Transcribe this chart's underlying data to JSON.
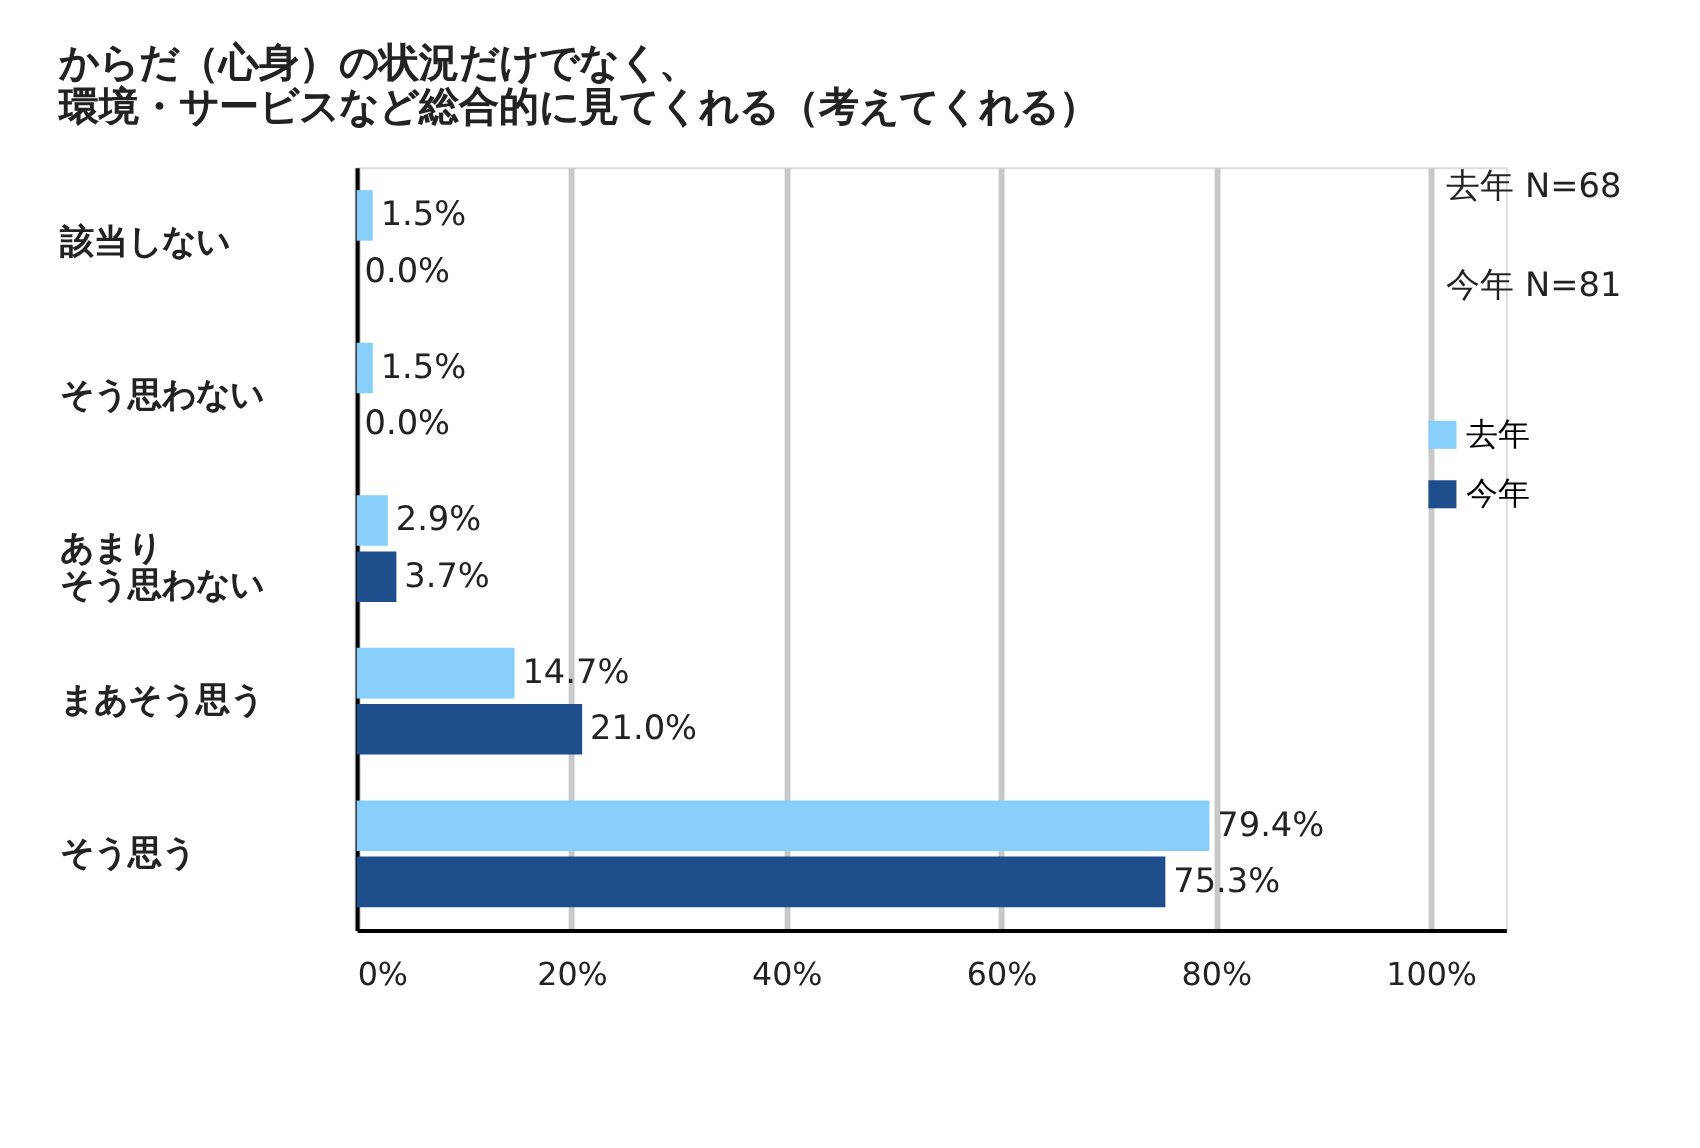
{
  "chart_data": {
    "type": "bar",
    "orientation": "horizontal",
    "title": "からだ（心身）の状況だけでなく、環境・サービスなど総合的に見てくれる（考えてくれる）",
    "categories": [
      "該当しない",
      "そう思わない",
      "あまりそう思わない",
      "まあそう思う",
      "そう思う"
    ],
    "series": [
      {
        "name": "去年",
        "color": "#87cefa",
        "values": [
          1.5,
          1.5,
          2.9,
          14.7,
          79.4
        ],
        "value_labels": [
          "1.5%",
          "1.5%",
          "2.9%",
          "14.7%",
          "79.4%"
        ]
      },
      {
        "name": "今年",
        "color": "#1f4e8c",
        "values": [
          0.0,
          0.0,
          3.7,
          21.0,
          75.3
        ],
        "value_labels": [
          "0.0%",
          "0.0%",
          "3.7%",
          "21.0%",
          "75.3%"
        ]
      }
    ],
    "xlim": [
      0,
      107
    ],
    "xticks": [
      {
        "value": 0,
        "label": "0%"
      },
      {
        "value": 20,
        "label": "20%"
      },
      {
        "value": 40,
        "label": "40%"
      },
      {
        "value": 60,
        "label": "60%"
      },
      {
        "value": 80,
        "label": "80%"
      },
      {
        "value": 100,
        "label": "100%"
      }
    ],
    "grid": "x",
    "legend": "right",
    "annotations": [
      "去年\nN=68",
      "今年\nN=81"
    ]
  }
}
